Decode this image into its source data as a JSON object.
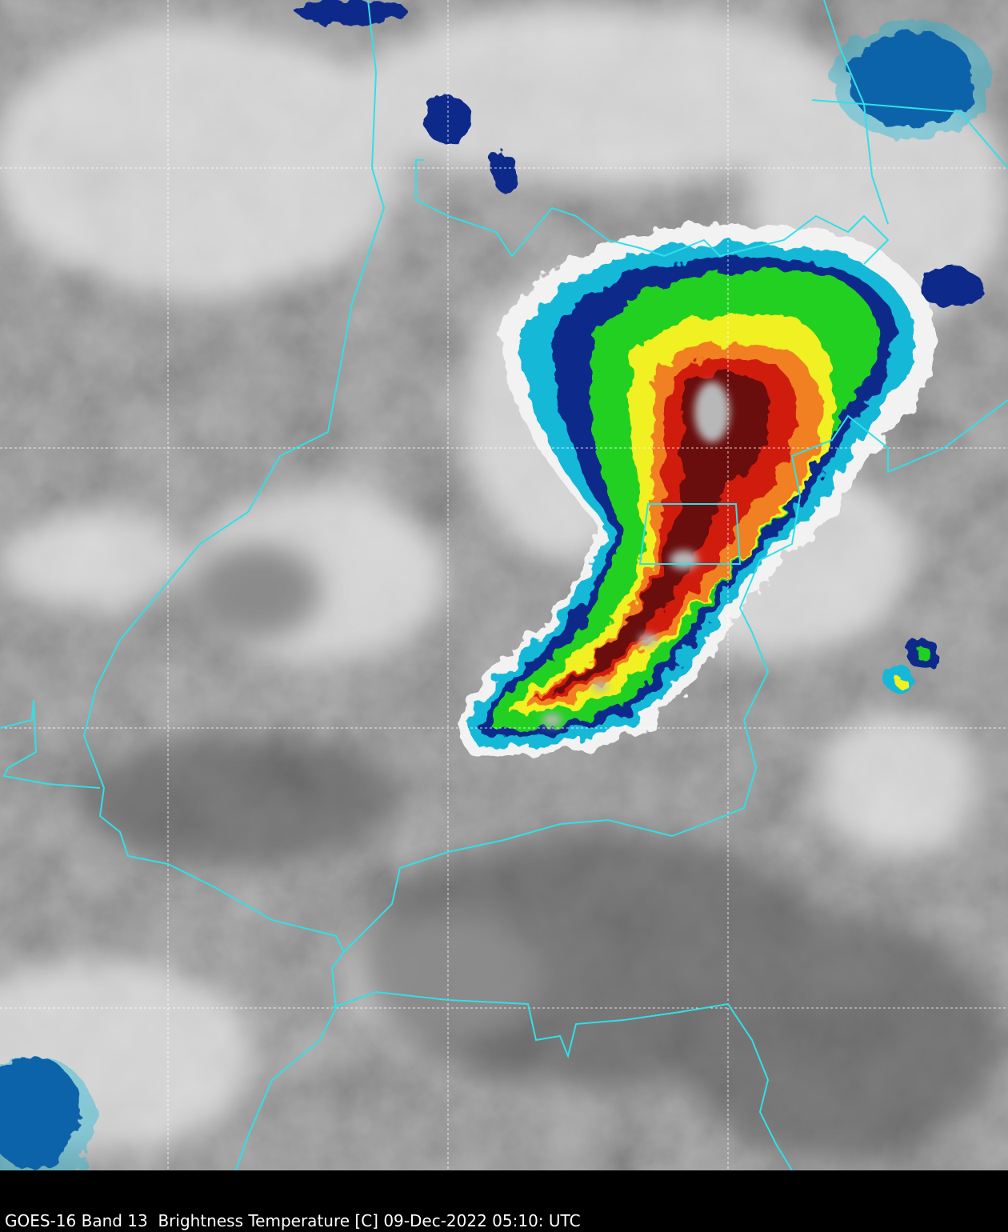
{
  "caption": "GOES-16 Band 13  Brightness Temperature [C] 09-Dec-2022 05:10: UTC"
}
